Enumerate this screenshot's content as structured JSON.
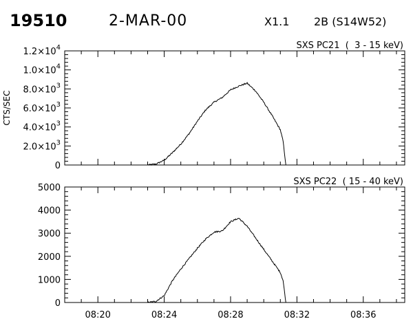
{
  "header": {
    "event_id": "19510",
    "date": "2-MAR-00",
    "xray_class": "X1.1",
    "flare_class": "2B (S14W52)"
  },
  "chart_data": [
    {
      "type": "line",
      "title": "SXS PC21  (  3 - 15 keV)",
      "ylabel": "CTS/SEC",
      "ylim": [
        0,
        12000
      ],
      "yticks": [
        0,
        2000,
        4000,
        6000,
        8000,
        10000,
        12000
      ],
      "ytick_labels": [
        {
          "mant": "0",
          "exp": ""
        },
        {
          "mant": "2.0×10",
          "exp": "3"
        },
        {
          "mant": "4.0×10",
          "exp": "3"
        },
        {
          "mant": "6.0×10",
          "exp": "3"
        },
        {
          "mant": "8.0×10",
          "exp": "3"
        },
        {
          "mant": "1.0×10",
          "exp": "4"
        },
        {
          "mant": "1.2×10",
          "exp": "4"
        }
      ],
      "xlim": [
        "08:18:00",
        "08:38:30"
      ],
      "series": [
        {
          "x": [
            "08:18:00",
            "08:22:00",
            "08:23:00",
            "08:23:30",
            "08:24:00",
            "08:24:30",
            "08:25:00",
            "08:25:30",
            "08:26:00",
            "08:26:30",
            "08:27:00",
            "08:27:30",
            "08:28:00",
            "08:28:30",
            "08:29:00",
            "08:29:30",
            "08:30:00",
            "08:30:30",
            "08:31:00",
            "08:31:10",
            "08:31:20"
          ],
          "y": [
            0,
            0,
            0,
            100,
            500,
            1300,
            2200,
            3300,
            4600,
            5800,
            6600,
            7100,
            7900,
            8300,
            8600,
            7800,
            6600,
            5200,
            3700,
            2500,
            0
          ]
        }
      ]
    },
    {
      "type": "line",
      "title": "SXS PC22  ( 15 - 40 keV)",
      "ylabel": "",
      "ylim": [
        0,
        5000
      ],
      "yticks": [
        0,
        1000,
        2000,
        3000,
        4000,
        5000
      ],
      "ytick_labels": [
        {
          "mant": "0",
          "exp": ""
        },
        {
          "mant": "1000",
          "exp": ""
        },
        {
          "mant": "2000",
          "exp": ""
        },
        {
          "mant": "3000",
          "exp": ""
        },
        {
          "mant": "4000",
          "exp": ""
        },
        {
          "mant": "5000",
          "exp": ""
        }
      ],
      "xlim": [
        "08:18:00",
        "08:38:30"
      ],
      "xtick_labels": [
        "08:20",
        "08:24",
        "08:28",
        "08:32",
        "08:36"
      ],
      "series": [
        {
          "x": [
            "08:18:00",
            "08:22:00",
            "08:23:00",
            "08:23:30",
            "08:24:00",
            "08:24:30",
            "08:25:00",
            "08:25:30",
            "08:26:00",
            "08:26:30",
            "08:27:00",
            "08:27:30",
            "08:28:00",
            "08:28:30",
            "08:29:00",
            "08:29:30",
            "08:30:00",
            "08:30:30",
            "08:31:00",
            "08:31:10",
            "08:31:20"
          ],
          "y": [
            0,
            0,
            0,
            50,
            300,
            950,
            1450,
            1900,
            2350,
            2750,
            3050,
            3100,
            3500,
            3650,
            3300,
            2800,
            2300,
            1800,
            1300,
            950,
            0
          ]
        }
      ]
    }
  ]
}
